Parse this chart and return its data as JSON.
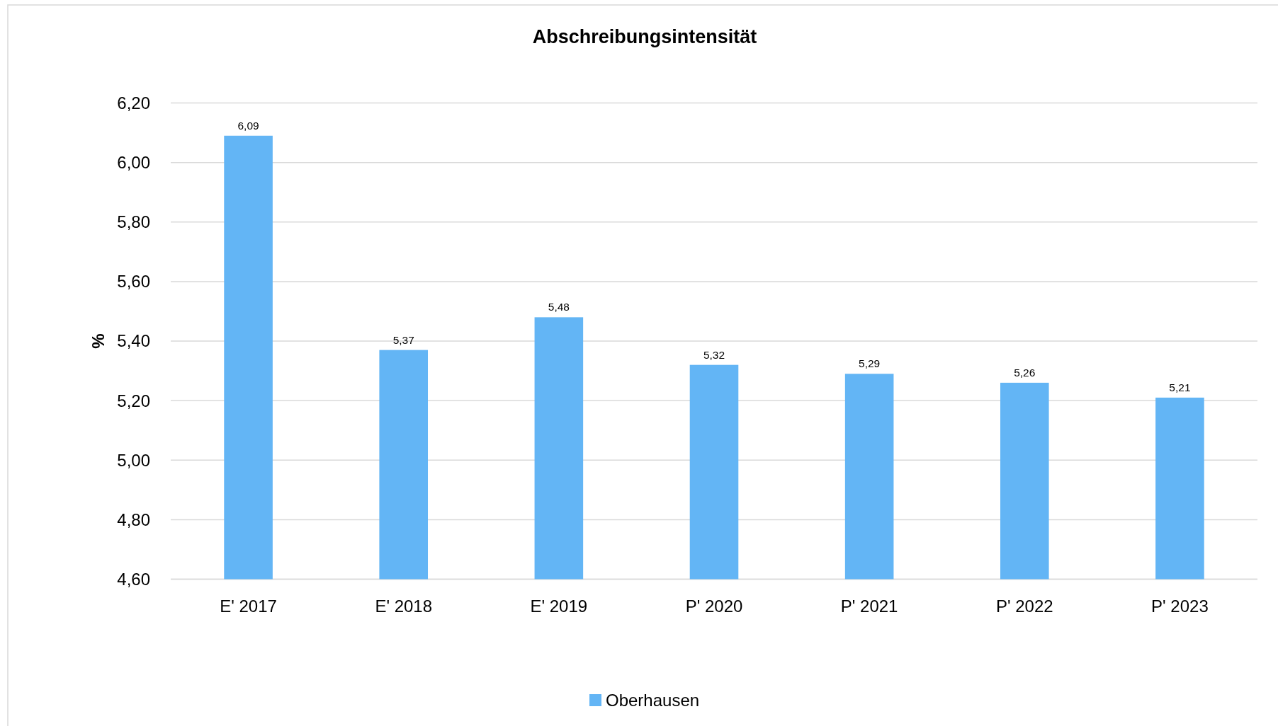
{
  "chart_data": {
    "type": "bar",
    "title": "Abschreibungsintensität",
    "ylabel": "%",
    "categories": [
      "E' 2017",
      "E' 2018",
      "E' 2019",
      "P' 2020",
      "P' 2021",
      "P' 2022",
      "P' 2023"
    ],
    "series": [
      {
        "name": "Oberhausen",
        "color": "#63b5f5",
        "values": [
          6.09,
          5.37,
          5.48,
          5.32,
          5.29,
          5.26,
          5.21
        ],
        "value_labels": [
          "6,09",
          "5,37",
          "5,48",
          "5,32",
          "5,29",
          "5,26",
          "5,21"
        ]
      }
    ],
    "ylim": [
      4.6,
      6.2
    ],
    "yticks": [
      {
        "value": 4.6,
        "label": "4,60"
      },
      {
        "value": 4.8,
        "label": "4,80"
      },
      {
        "value": 5.0,
        "label": "5,00"
      },
      {
        "value": 5.2,
        "label": "5,20"
      },
      {
        "value": 5.4,
        "label": "5,40"
      },
      {
        "value": 5.6,
        "label": "5,60"
      },
      {
        "value": 5.8,
        "label": "5,80"
      },
      {
        "value": 6.0,
        "label": "6,00"
      },
      {
        "value": 6.2,
        "label": "6,20"
      }
    ],
    "grid": "y",
    "legend": "bottom"
  }
}
